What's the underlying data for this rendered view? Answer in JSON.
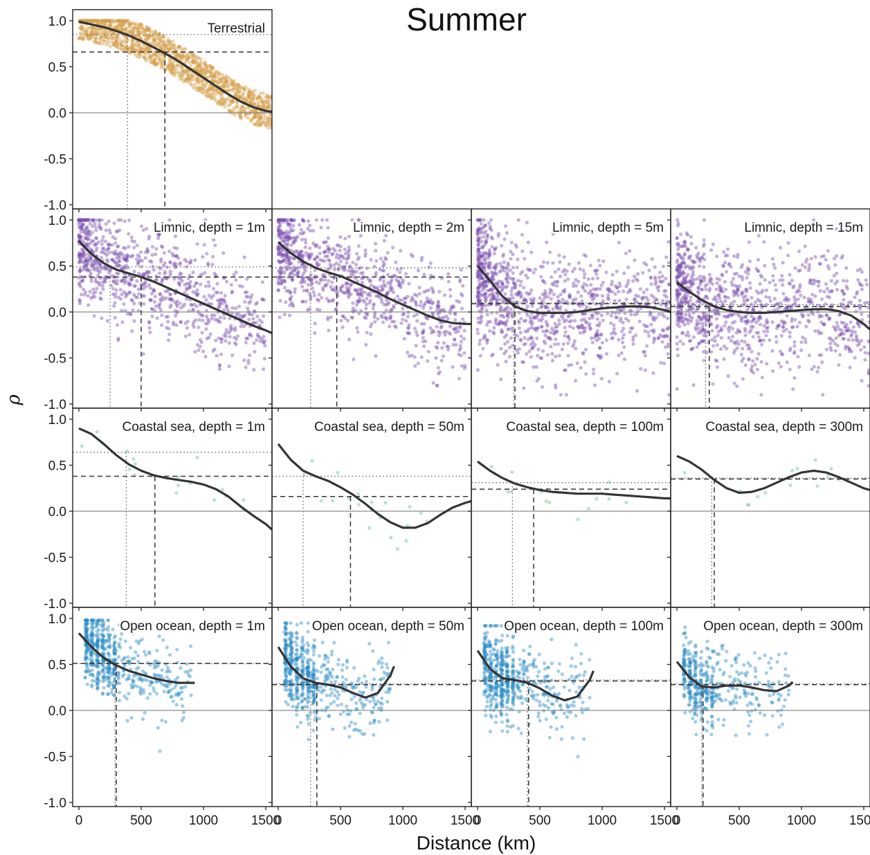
{
  "figure": {
    "title": "Summer",
    "xlabel": "Distance (km)",
    "ylabel": "ρ",
    "colors": {
      "terrestrial": "#d4a04c",
      "limnic": "#7d4fb0",
      "coastal": "#6cc08a",
      "ocean": "#2f8fc6",
      "curve": "#333333"
    }
  },
  "chart_data": [
    {
      "type": "scatter",
      "label": "Terrestrial",
      "color_key": "terrestrial",
      "row": 0,
      "col": 0,
      "xlim": [
        -50,
        1550
      ],
      "ylim": [
        -1.0,
        1.0
      ],
      "xticks": [
        0,
        500,
        1000,
        1500
      ],
      "yticks": [
        -1.0,
        -0.5,
        0.0,
        0.5,
        1.0
      ],
      "yticklabels": [
        "-1.0",
        "-0.5",
        "0.0",
        "0.5",
        "1.0"
      ],
      "curve": {
        "x": [
          0,
          100,
          200,
          300,
          400,
          500,
          600,
          700,
          800,
          900,
          1000,
          1100,
          1200,
          1300,
          1400,
          1500,
          1550
        ],
        "y": [
          0.99,
          0.96,
          0.93,
          0.89,
          0.84,
          0.78,
          0.71,
          0.64,
          0.56,
          0.47,
          0.38,
          0.29,
          0.2,
          0.12,
          0.06,
          0.02,
          0.01
        ]
      },
      "dotted": {
        "x": 390,
        "y": 0.85
      },
      "dashed": {
        "x": 690,
        "y": 0.66
      },
      "cloud": {
        "n": 1400,
        "xmin": 0,
        "xmax": 1550,
        "spread": 0.17,
        "density": "uniform",
        "ymin": -0.35,
        "ymax": 1.0
      }
    },
    {
      "type": "scatter",
      "label": "Limnic, depth = 1m",
      "color_key": "limnic",
      "row": 1,
      "col": 0,
      "xlim": [
        -50,
        1550
      ],
      "ylim": [
        -1.0,
        1.0
      ],
      "xticks": [
        0,
        500,
        1000,
        1500
      ],
      "yticks": [
        -1.0,
        -0.5,
        0.0,
        0.5,
        1.0
      ],
      "yticklabels": [
        "-1.0",
        "-0.5",
        "0.0",
        "0.5",
        "1.0"
      ],
      "curve": {
        "x": [
          0,
          100,
          200,
          300,
          400,
          500,
          600,
          700,
          800,
          900,
          1000,
          1100,
          1200,
          1300,
          1400,
          1500,
          1550
        ],
        "y": [
          0.77,
          0.63,
          0.53,
          0.46,
          0.42,
          0.38,
          0.33,
          0.27,
          0.21,
          0.15,
          0.09,
          0.03,
          -0.03,
          -0.09,
          -0.15,
          -0.2,
          -0.23
        ]
      },
      "dotted": {
        "x": 250,
        "y": 0.49
      },
      "dashed": {
        "x": 500,
        "y": 0.38
      },
      "cloud": {
        "n": 900,
        "xmin": 0,
        "xmax": 1500,
        "spread": 0.28,
        "density": "near",
        "ymin": -0.8,
        "ymax": 1.0
      }
    },
    {
      "type": "scatter",
      "label": "Limnic, depth = 2m",
      "color_key": "limnic",
      "row": 1,
      "col": 1,
      "xlim": [
        -50,
        1550
      ],
      "ylim": [
        -1.0,
        1.0
      ],
      "xticks": [
        0,
        500,
        1000,
        1500
      ],
      "yticks": [
        -1.0,
        -0.5,
        0.0,
        0.5,
        1.0
      ],
      "yticklabels": [
        "",
        "",
        "",
        "",
        ""
      ],
      "curve": {
        "x": [
          0,
          100,
          200,
          300,
          400,
          500,
          600,
          700,
          800,
          900,
          1000,
          1100,
          1200,
          1300,
          1400,
          1500,
          1550
        ],
        "y": [
          0.76,
          0.64,
          0.55,
          0.48,
          0.43,
          0.39,
          0.33,
          0.27,
          0.21,
          0.14,
          0.08,
          0.02,
          -0.04,
          -0.09,
          -0.12,
          -0.13,
          -0.13
        ]
      },
      "dotted": {
        "x": 260,
        "y": 0.48
      },
      "dashed": {
        "x": 470,
        "y": 0.38
      },
      "cloud": {
        "n": 900,
        "xmin": 0,
        "xmax": 1500,
        "spread": 0.28,
        "density": "near",
        "ymin": -0.8,
        "ymax": 1.0
      }
    },
    {
      "type": "scatter",
      "label": "Limnic, depth = 5m",
      "color_key": "limnic",
      "row": 1,
      "col": 2,
      "xlim": [
        -50,
        1550
      ],
      "ylim": [
        -1.0,
        1.0
      ],
      "xticks": [
        0,
        500,
        1000,
        1500
      ],
      "yticks": [
        -1.0,
        -0.5,
        0.0,
        0.5,
        1.0
      ],
      "yticklabels": [
        "",
        "",
        "",
        "",
        ""
      ],
      "curve": {
        "x": [
          0,
          100,
          200,
          300,
          400,
          500,
          600,
          700,
          800,
          900,
          1000,
          1100,
          1200,
          1300,
          1400,
          1500,
          1550
        ],
        "y": [
          0.5,
          0.34,
          0.17,
          0.06,
          0.01,
          -0.01,
          -0.01,
          -0.01,
          0.0,
          0.02,
          0.04,
          0.05,
          0.06,
          0.06,
          0.05,
          0.02,
          0.0
        ]
      },
      "dotted": {
        "x": 290,
        "y": 0.1
      },
      "dashed": {
        "x": 300,
        "y": 0.09
      },
      "cloud": {
        "n": 1100,
        "xmin": 0,
        "xmax": 1550,
        "spread": 0.33,
        "density": "near",
        "ymin": -0.9,
        "ymax": 1.0
      }
    },
    {
      "type": "scatter",
      "label": "Limnic, depth = 15m",
      "color_key": "limnic",
      "row": 1,
      "col": 3,
      "xlim": [
        -50,
        1550
      ],
      "ylim": [
        -1.0,
        1.0
      ],
      "xticks": [
        0,
        500,
        1000,
        1500
      ],
      "yticks": [
        -1.0,
        -0.5,
        0.0,
        0.5,
        1.0
      ],
      "yticklabels": [
        "",
        "",
        "",
        "",
        ""
      ],
      "curve": {
        "x": [
          0,
          100,
          200,
          300,
          400,
          500,
          600,
          700,
          800,
          900,
          1000,
          1100,
          1200,
          1300,
          1400,
          1500,
          1550
        ],
        "y": [
          0.32,
          0.22,
          0.13,
          0.06,
          0.02,
          0.0,
          -0.01,
          -0.01,
          0.0,
          0.01,
          0.02,
          0.03,
          0.03,
          0.01,
          -0.04,
          -0.13,
          -0.19
        ]
      },
      "dotted": {
        "x": 230,
        "y": 0.08
      },
      "dashed": {
        "x": 260,
        "y": 0.06
      },
      "cloud": {
        "n": 1000,
        "xmin": 0,
        "xmax": 1550,
        "spread": 0.32,
        "density": "near",
        "ymin": -0.9,
        "ymax": 1.0
      }
    },
    {
      "type": "scatter",
      "label": "Coastal sea, depth = 1m",
      "color_key": "coastal",
      "row": 2,
      "col": 0,
      "xlim": [
        -50,
        1550
      ],
      "ylim": [
        -1.0,
        1.0
      ],
      "xticks": [
        0,
        500,
        1000,
        1500
      ],
      "yticks": [
        -1.0,
        -0.5,
        0.0,
        0.5,
        1.0
      ],
      "yticklabels": [
        "-1.0",
        "-0.5",
        "0.0",
        "0.5",
        "1.0"
      ],
      "curve": {
        "x": [
          0,
          100,
          200,
          300,
          400,
          500,
          600,
          700,
          800,
          900,
          1000,
          1100,
          1200,
          1300,
          1400,
          1500,
          1550
        ],
        "y": [
          0.9,
          0.84,
          0.73,
          0.61,
          0.51,
          0.44,
          0.39,
          0.36,
          0.34,
          0.32,
          0.29,
          0.24,
          0.16,
          0.05,
          -0.05,
          -0.14,
          -0.2
        ]
      },
      "dotted": {
        "x": 380,
        "y": 0.64
      },
      "dashed": {
        "x": 610,
        "y": 0.38
      },
      "cloud": {
        "n": 18,
        "xmin": 0,
        "xmax": 1400,
        "spread": 0.1,
        "density": "sparse",
        "ymin": -0.2,
        "ymax": 0.95
      }
    },
    {
      "type": "scatter",
      "label": "Coastal sea, depth = 50m",
      "color_key": "coastal",
      "row": 2,
      "col": 1,
      "xlim": [
        -50,
        1550
      ],
      "ylim": [
        -1.0,
        1.0
      ],
      "xticks": [
        0,
        500,
        1000,
        1500
      ],
      "yticks": [
        -1.0,
        -0.5,
        0.0,
        0.5,
        1.0
      ],
      "yticklabels": [
        "",
        "",
        "",
        "",
        ""
      ],
      "curve": {
        "x": [
          0,
          100,
          200,
          300,
          400,
          500,
          600,
          700,
          800,
          900,
          1000,
          1100,
          1200,
          1300,
          1400,
          1500,
          1550
        ],
        "y": [
          0.73,
          0.56,
          0.44,
          0.38,
          0.33,
          0.26,
          0.18,
          0.08,
          -0.03,
          -0.12,
          -0.18,
          -0.18,
          -0.13,
          -0.04,
          0.04,
          0.09,
          0.11
        ]
      },
      "dotted": {
        "x": 200,
        "y": 0.38
      },
      "dashed": {
        "x": 580,
        "y": 0.16
      },
      "cloud": {
        "n": 20,
        "xmin": 100,
        "xmax": 1200,
        "spread": 0.15,
        "density": "sparse",
        "ymin": -0.5,
        "ymax": 0.85
      }
    },
    {
      "type": "scatter",
      "label": "Coastal sea, depth = 100m",
      "color_key": "coastal",
      "row": 2,
      "col": 2,
      "xlim": [
        -50,
        1550
      ],
      "ylim": [
        -1.0,
        1.0
      ],
      "xticks": [
        0,
        500,
        1000,
        1500
      ],
      "yticks": [
        -1.0,
        -0.5,
        0.0,
        0.5,
        1.0
      ],
      "yticklabels": [
        "",
        "",
        "",
        "",
        ""
      ],
      "curve": {
        "x": [
          0,
          100,
          200,
          300,
          400,
          500,
          600,
          700,
          800,
          900,
          1000,
          1100,
          1200,
          1300,
          1400,
          1500,
          1550
        ],
        "y": [
          0.54,
          0.44,
          0.36,
          0.3,
          0.26,
          0.23,
          0.21,
          0.2,
          0.19,
          0.19,
          0.19,
          0.18,
          0.17,
          0.16,
          0.15,
          0.14,
          0.14
        ]
      },
      "dotted": {
        "x": 280,
        "y": 0.31
      },
      "dashed": {
        "x": 450,
        "y": 0.24
      },
      "cloud": {
        "n": 16,
        "xmin": 100,
        "xmax": 1200,
        "spread": 0.1,
        "density": "sparse",
        "ymin": -0.45,
        "ymax": 0.5
      }
    },
    {
      "type": "scatter",
      "label": "Coastal sea, depth = 300m",
      "color_key": "coastal",
      "row": 2,
      "col": 3,
      "xlim": [
        -50,
        1550
      ],
      "ylim": [
        -1.0,
        1.0
      ],
      "xticks": [
        0,
        500,
        1000,
        1500
      ],
      "yticks": [
        -1.0,
        -0.5,
        0.0,
        0.5,
        1.0
      ],
      "yticklabels": [
        "",
        "",
        "",
        "",
        ""
      ],
      "curve": {
        "x": [
          0,
          100,
          200,
          300,
          400,
          500,
          600,
          700,
          800,
          900,
          1000,
          1100,
          1200,
          1300,
          1400,
          1500,
          1550
        ],
        "y": [
          0.6,
          0.54,
          0.45,
          0.34,
          0.25,
          0.2,
          0.21,
          0.25,
          0.31,
          0.37,
          0.42,
          0.44,
          0.42,
          0.37,
          0.31,
          0.25,
          0.23
        ]
      },
      "dotted": {
        "x": 280,
        "y": 0.36
      },
      "dashed": {
        "x": 300,
        "y": 0.35
      },
      "cloud": {
        "n": 14,
        "xmin": 50,
        "xmax": 1300,
        "spread": 0.1,
        "density": "sparse",
        "ymin": 0.0,
        "ymax": 0.8
      }
    },
    {
      "type": "scatter",
      "label": "Open ocean, depth = 1m",
      "color_key": "ocean",
      "row": 3,
      "col": 0,
      "xlim": [
        -50,
        1550
      ],
      "ylim": [
        -1.0,
        1.0
      ],
      "xticks": [
        0,
        500,
        1000,
        1500
      ],
      "yticks": [
        -1.0,
        -0.5,
        0.0,
        0.5,
        1.0
      ],
      "yticklabels": [
        "-1.0",
        "-0.5",
        "0.0",
        "0.5",
        "1.0"
      ],
      "curve": {
        "x": [
          0,
          100,
          200,
          300,
          400,
          500,
          600,
          700,
          800,
          900,
          930
        ],
        "y": [
          0.84,
          0.69,
          0.57,
          0.49,
          0.43,
          0.39,
          0.35,
          0.32,
          0.3,
          0.3,
          0.3
        ]
      },
      "dotted": {
        "x": 290,
        "y": 0.51
      },
      "dashed": {
        "x": 300,
        "y": 0.51
      },
      "cloud": {
        "n": 600,
        "xmin": 50,
        "xmax": 900,
        "spread": 0.22,
        "density": "banded",
        "ymin": -0.5,
        "ymax": 0.98
      }
    },
    {
      "type": "scatter",
      "label": "Open ocean, depth = 50m",
      "color_key": "ocean",
      "row": 3,
      "col": 1,
      "xlim": [
        -50,
        1550
      ],
      "ylim": [
        -1.0,
        1.0
      ],
      "xticks": [
        0,
        500,
        1000,
        1500
      ],
      "yticks": [
        -1.0,
        -0.5,
        0.0,
        0.5,
        1.0
      ],
      "yticklabels": [
        "",
        "",
        "",
        "",
        ""
      ],
      "curve": {
        "x": [
          0,
          100,
          200,
          300,
          400,
          500,
          600,
          700,
          800,
          900,
          930
        ],
        "y": [
          0.69,
          0.48,
          0.35,
          0.3,
          0.28,
          0.25,
          0.19,
          0.14,
          0.19,
          0.38,
          0.48
        ]
      },
      "dotted": {
        "x": 260,
        "y": 0.29
      },
      "dashed": {
        "x": 310,
        "y": 0.28
      },
      "cloud": {
        "n": 600,
        "xmin": 50,
        "xmax": 900,
        "spread": 0.22,
        "density": "banded",
        "ymin": -0.75,
        "ymax": 0.95
      }
    },
    {
      "type": "scatter",
      "label": "Open ocean, depth = 100m",
      "color_key": "ocean",
      "row": 3,
      "col": 2,
      "xlim": [
        -50,
        1550
      ],
      "ylim": [
        -1.0,
        1.0
      ],
      "xticks": [
        0,
        500,
        1000,
        1500
      ],
      "yticks": [
        -1.0,
        -0.5,
        0.0,
        0.5,
        1.0
      ],
      "yticklabels": [
        "",
        "",
        "",
        "",
        ""
      ],
      "curve": {
        "x": [
          0,
          100,
          200,
          300,
          400,
          500,
          600,
          700,
          800,
          900,
          930
        ],
        "y": [
          0.65,
          0.45,
          0.35,
          0.33,
          0.3,
          0.24,
          0.16,
          0.11,
          0.15,
          0.33,
          0.43
        ]
      },
      "dotted": {
        "x": 400,
        "y": 0.33
      },
      "dashed": {
        "x": 410,
        "y": 0.32
      },
      "cloud": {
        "n": 600,
        "xmin": 50,
        "xmax": 900,
        "spread": 0.22,
        "density": "banded",
        "ymin": -0.65,
        "ymax": 0.92
      }
    },
    {
      "type": "scatter",
      "label": "Open ocean, depth = 300m",
      "color_key": "ocean",
      "row": 3,
      "col": 3,
      "xlim": [
        -50,
        1550
      ],
      "ylim": [
        -1.0,
        1.0
      ],
      "xticks": [
        0,
        500,
        1000,
        1500
      ],
      "yticks": [
        -1.0,
        -0.5,
        0.0,
        0.5,
        1.0
      ],
      "yticklabels": [
        "",
        "",
        "",
        "",
        ""
      ],
      "curve": {
        "x": [
          0,
          100,
          200,
          300,
          400,
          500,
          600,
          700,
          800,
          900,
          930
        ],
        "y": [
          0.53,
          0.36,
          0.26,
          0.25,
          0.27,
          0.27,
          0.25,
          0.22,
          0.21,
          0.27,
          0.31
        ]
      },
      "dotted": {
        "x": 200,
        "y": 0.29
      },
      "dashed": {
        "x": 210,
        "y": 0.28
      },
      "cloud": {
        "n": 450,
        "xmin": 50,
        "xmax": 900,
        "spread": 0.2,
        "density": "banded",
        "ymin": -0.6,
        "ymax": 0.92
      }
    }
  ]
}
